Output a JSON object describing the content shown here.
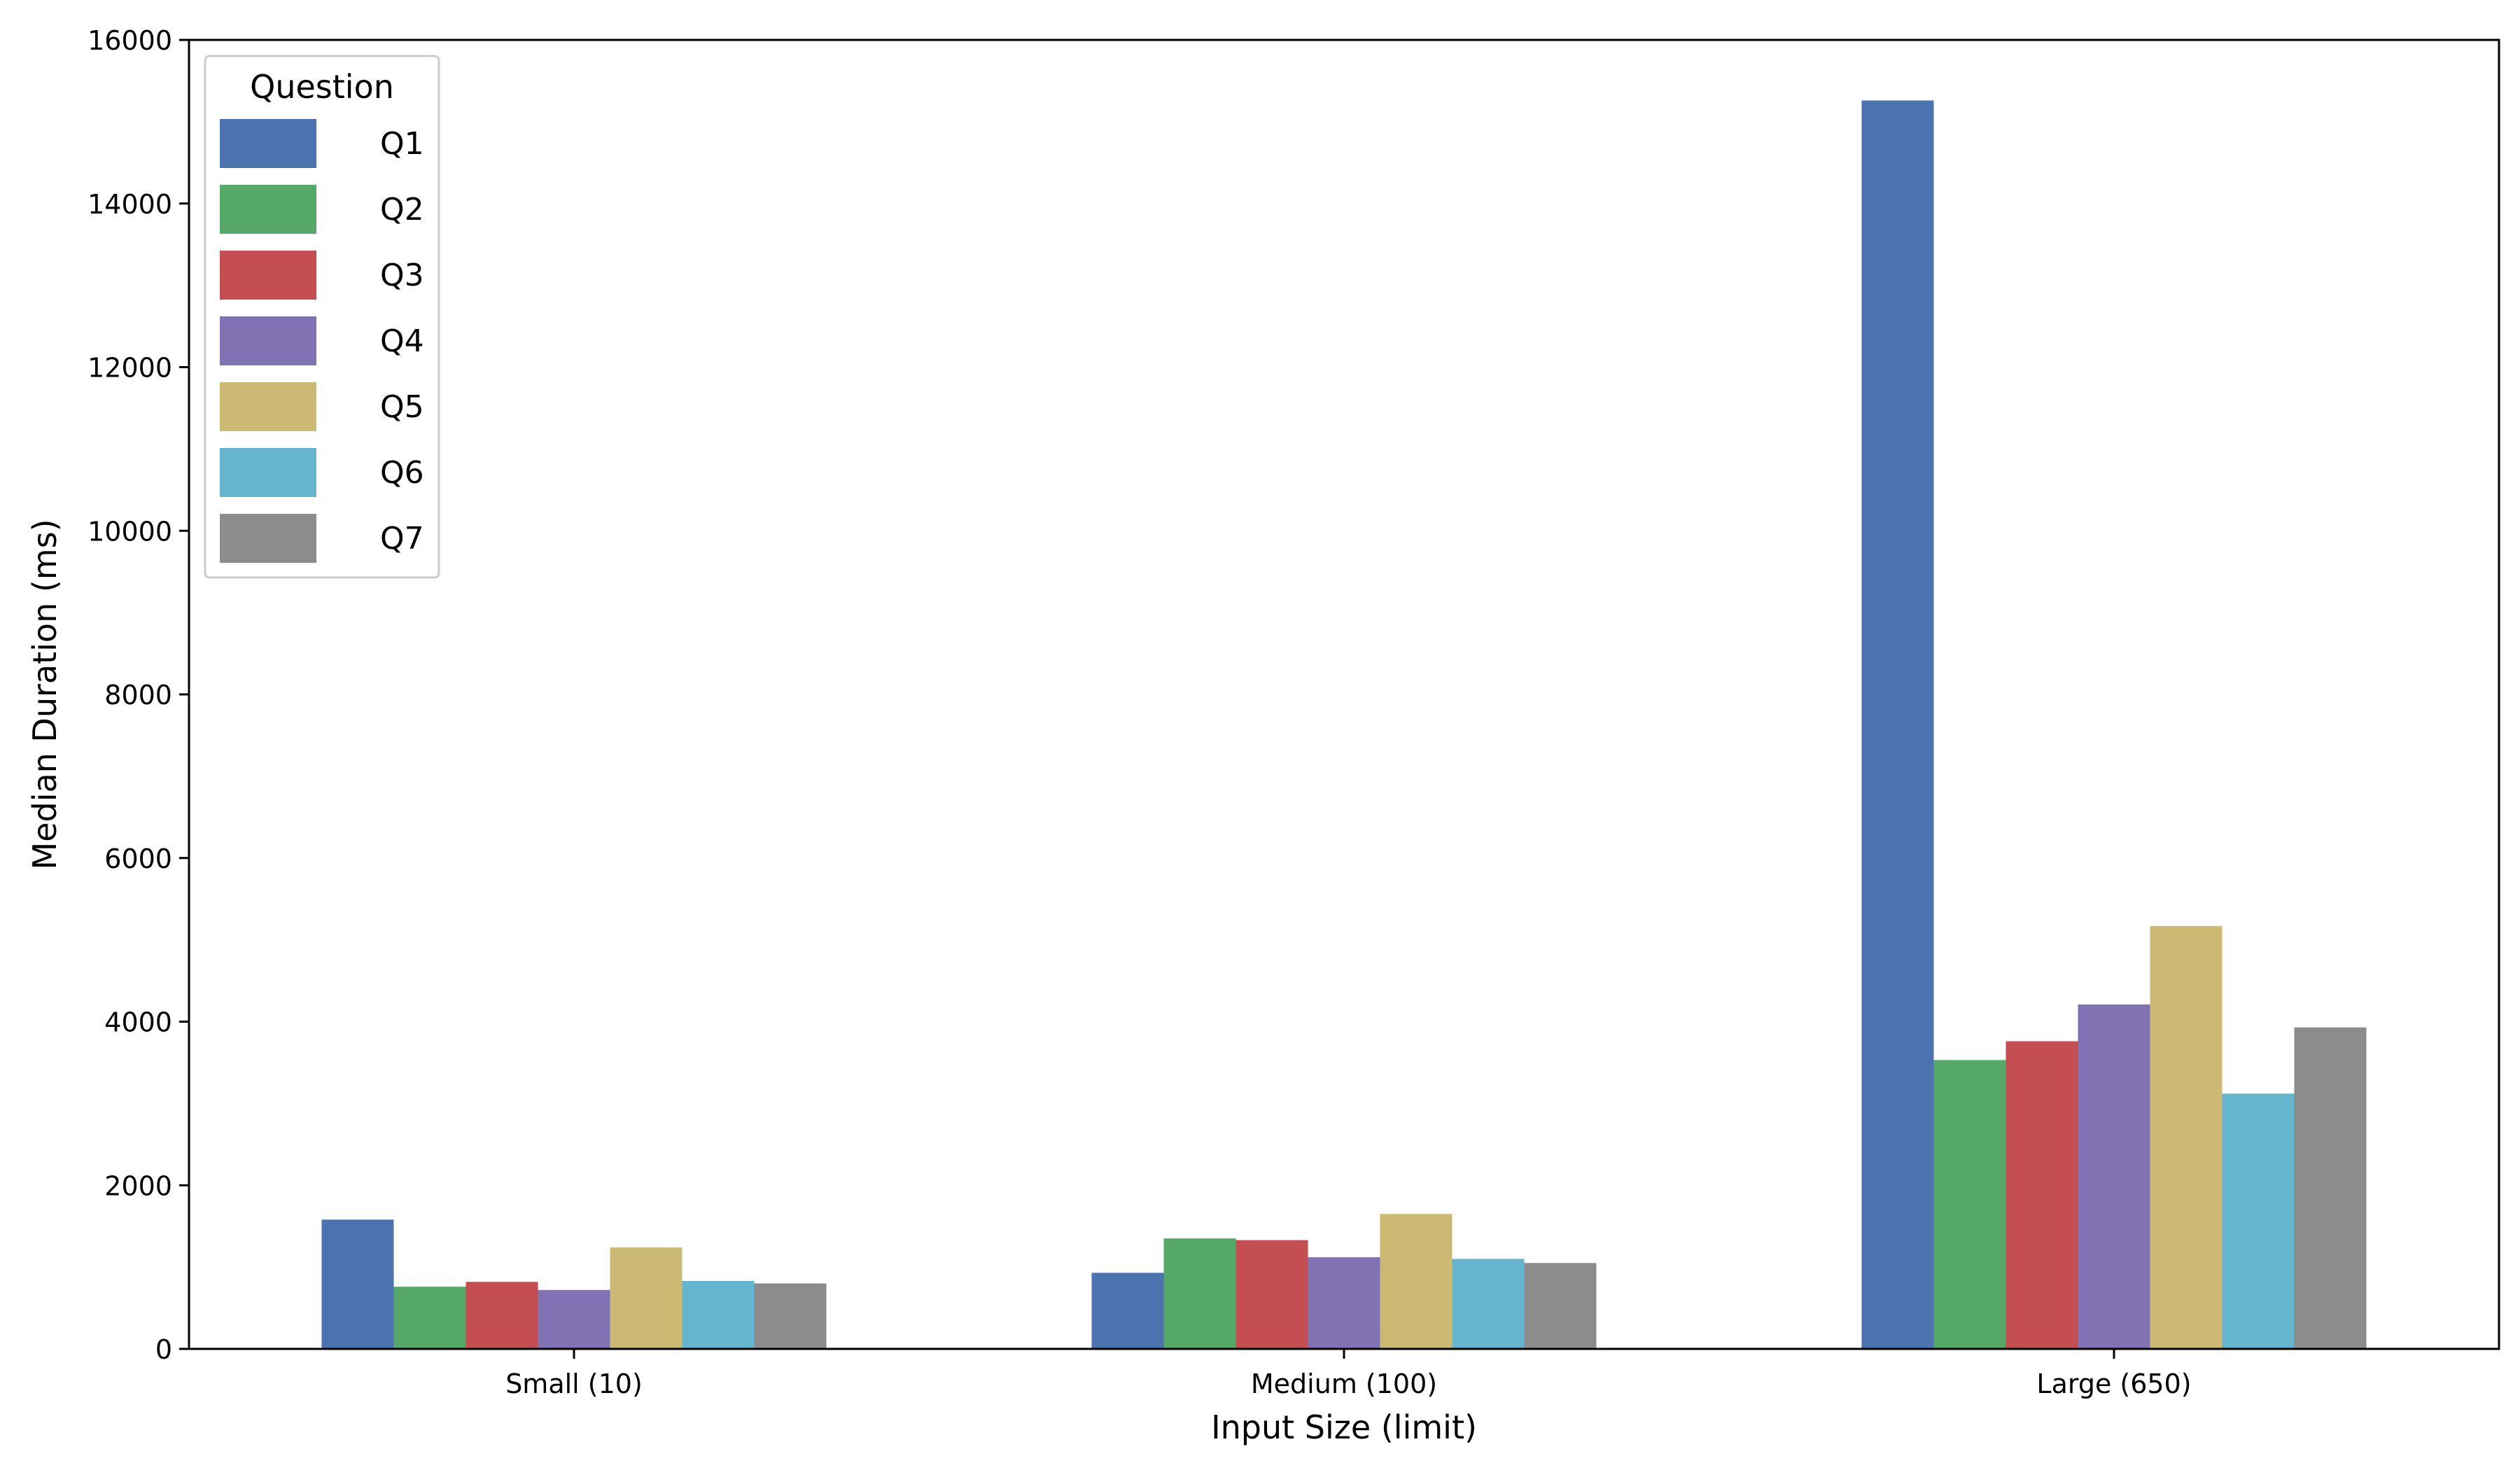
{
  "chart_data": {
    "type": "bar",
    "title": "",
    "xlabel": "Input Size (limit)",
    "ylabel": "Median Duration (ms)",
    "categories": [
      "Small (10)",
      "Medium (100)",
      "Large (650)"
    ],
    "ylim": [
      0,
      16000
    ],
    "yticks": [
      0,
      2000,
      4000,
      6000,
      8000,
      10000,
      12000,
      14000,
      16000
    ],
    "grid": false,
    "legend": {
      "title": "Question",
      "position": "top-left"
    },
    "series": [
      {
        "name": "Q1",
        "color": "#4C72B0",
        "values": [
          1580,
          930,
          15260
        ]
      },
      {
        "name": "Q2",
        "color": "#55A868",
        "values": [
          760,
          1350,
          3530
        ]
      },
      {
        "name": "Q3",
        "color": "#C44E52",
        "values": [
          820,
          1330,
          3760
        ]
      },
      {
        "name": "Q4",
        "color": "#8172B3",
        "values": [
          720,
          1120,
          4210
        ]
      },
      {
        "name": "Q5",
        "color": "#CCB974",
        "values": [
          1240,
          1650,
          5170
        ]
      },
      {
        "name": "Q6",
        "color": "#64B5CD",
        "values": [
          830,
          1100,
          3120
        ]
      },
      {
        "name": "Q7",
        "color": "#8C8C8C",
        "values": [
          800,
          1050,
          3930
        ]
      }
    ]
  }
}
